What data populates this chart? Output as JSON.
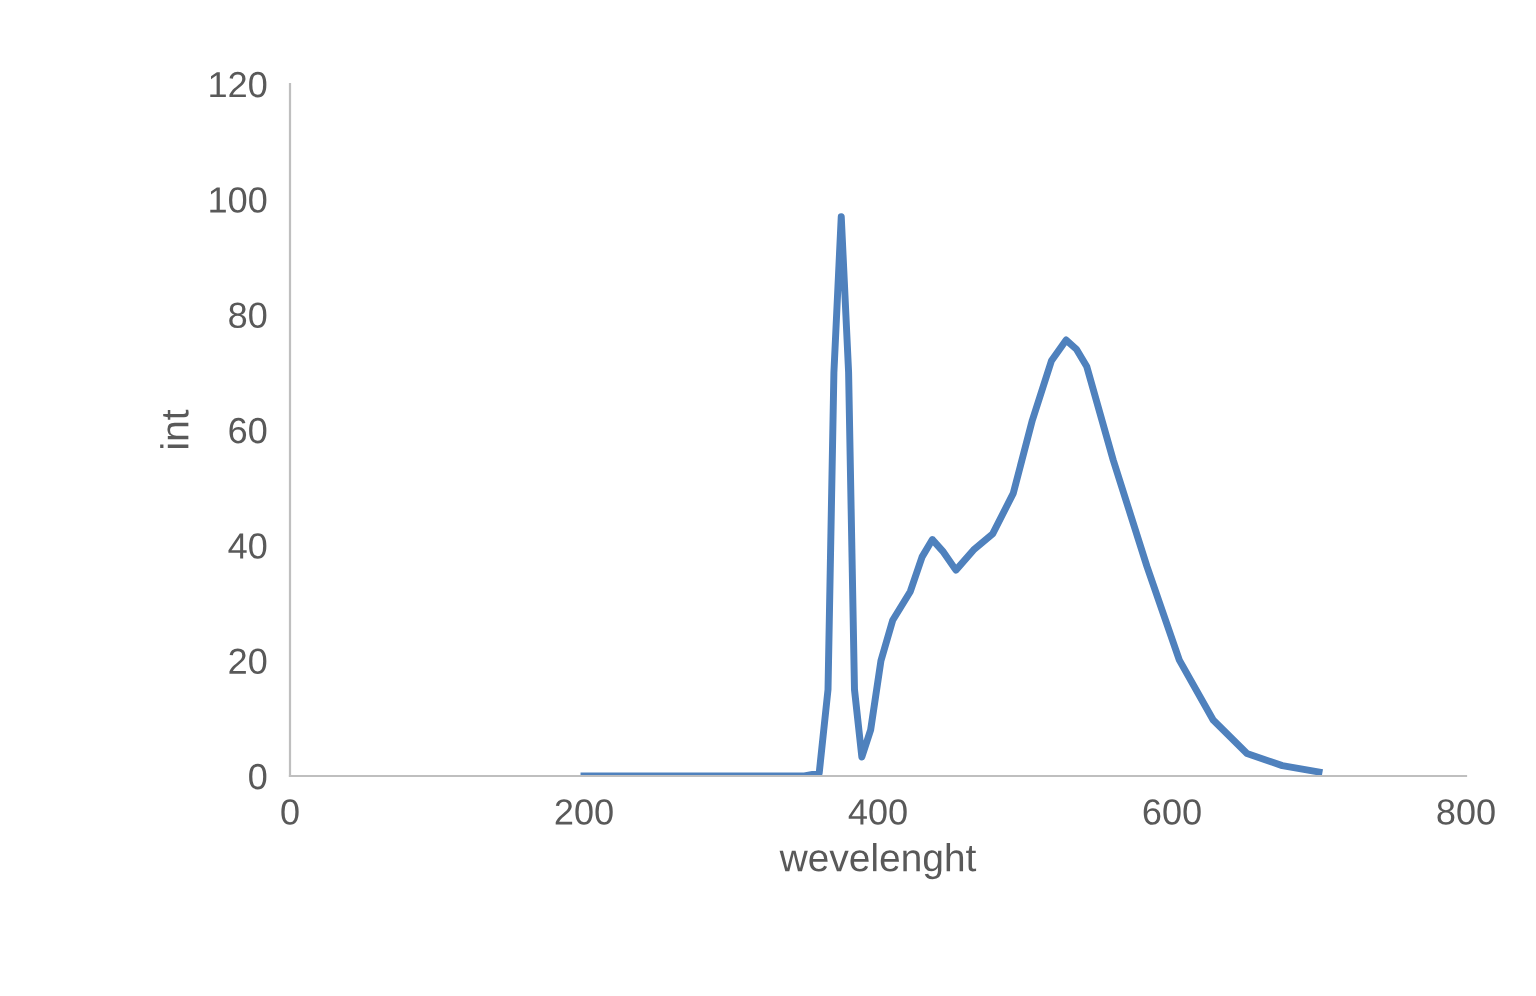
{
  "chart_data": {
    "type": "line",
    "xlabel": "wevelenght",
    "ylabel": "int",
    "series": [
      {
        "color": "#4f81bd",
        "x": [
          200,
          250,
          300,
          350,
          360,
          366,
          370,
          375,
          380,
          384,
          389,
          395,
          402,
          410,
          422,
          430,
          437,
          444,
          453,
          465,
          478,
          492,
          505,
          518,
          528,
          535,
          542,
          560,
          583,
          605,
          628,
          651,
          675,
          700
        ],
        "values": [
          0,
          0,
          0,
          0,
          0.5,
          15,
          70,
          97,
          70,
          15,
          3.3,
          8,
          20,
          27,
          32,
          38,
          41,
          39,
          35.7,
          39.2,
          42,
          49,
          61.7,
          72,
          75.6,
          74,
          71,
          54.8,
          36.3,
          20.1,
          9.7,
          3.9,
          1.8,
          0.7
        ]
      }
    ],
    "xlim": [
      0,
      800
    ],
    "xticks": [
      0,
      200,
      400,
      600,
      800
    ],
    "ylim": [
      0,
      120
    ],
    "yticks": [
      0,
      20,
      40,
      60,
      80,
      100,
      120
    ],
    "grid": false,
    "legend": false,
    "line_style": "solid",
    "marker": "none"
  }
}
